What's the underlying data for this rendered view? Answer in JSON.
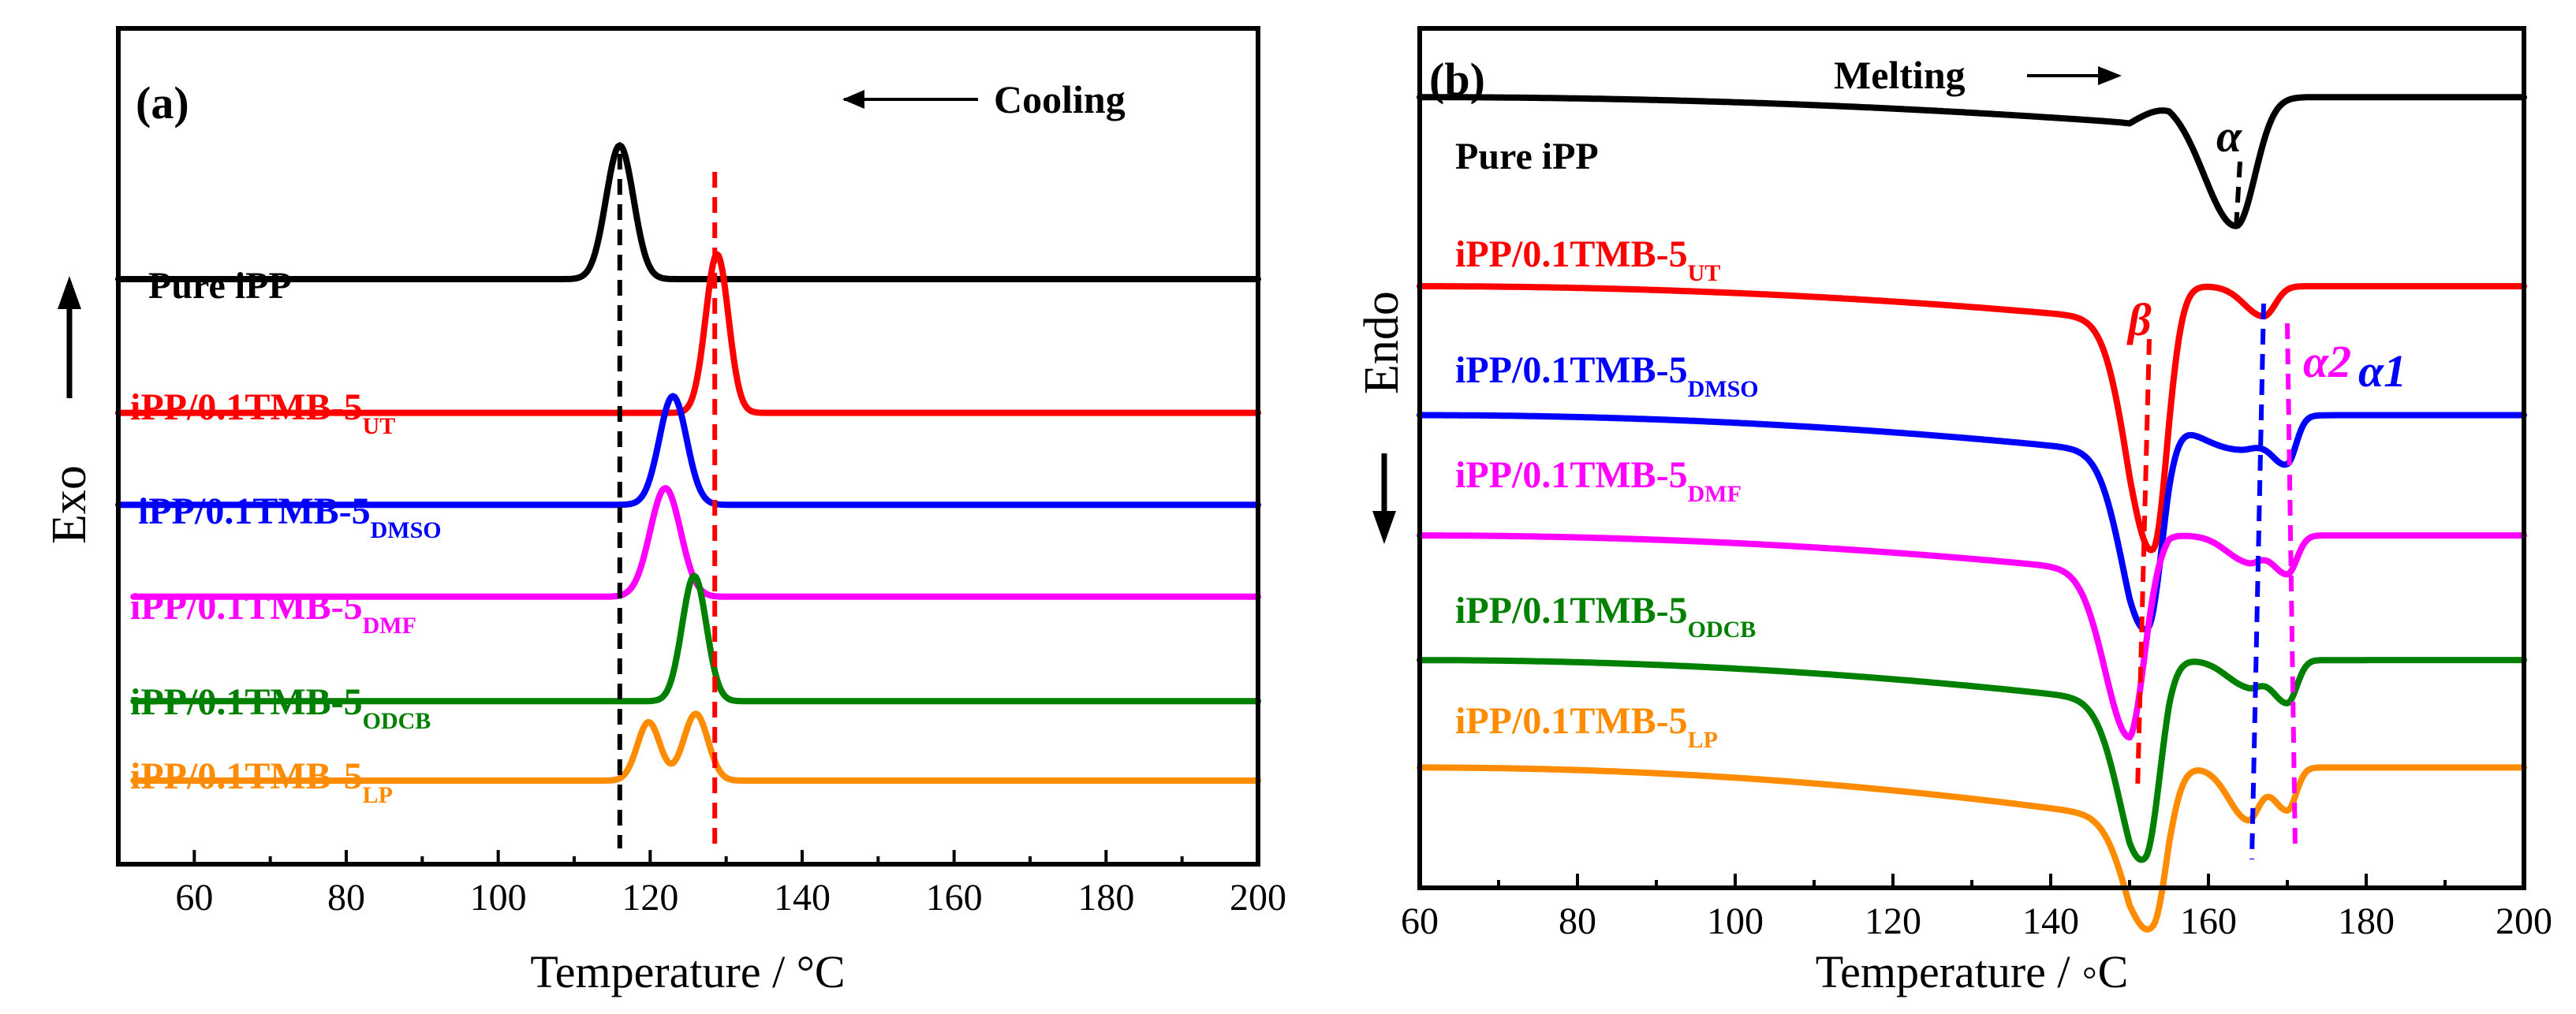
{
  "chart_data": [
    {
      "type": "line",
      "panel_label": "(a)",
      "annotation": "Cooling",
      "annotation_arrow": "left",
      "xlabel": "Temperature / °C",
      "ylabel": "Exo",
      "ylabel_arrow": "up",
      "xlim": [
        50,
        200
      ],
      "xticks": [
        60,
        80,
        100,
        120,
        140,
        160,
        180,
        200
      ],
      "grid": false,
      "series": [
        {
          "name": "Pure iPP",
          "subscript": "",
          "color": "#000000",
          "baseline": 0.7,
          "x_start": 50,
          "peaks": [
            {
              "t": 116.0,
              "w": 1.8,
              "a": 0.16
            }
          ]
        },
        {
          "name": "iPP/0.1TMB-5",
          "subscript": "UT",
          "color": "#ff0000",
          "baseline": 0.54,
          "x_start": 50,
          "peaks": [
            {
              "t": 128.8,
              "w": 1.5,
              "a": 0.19
            }
          ]
        },
        {
          "name": "iPP/0.1TMB-5",
          "subscript": "DMSO",
          "color": "#0000ff",
          "baseline": 0.43,
          "x_start": 50,
          "peaks": [
            {
              "t": 123.0,
              "w": 1.8,
              "a": 0.13
            }
          ]
        },
        {
          "name": "iPP/0.1TMB-5",
          "subscript": "DMF",
          "color": "#ff00ff",
          "baseline": 0.32,
          "x_start": 52,
          "peaks": [
            {
              "t": 122.0,
              "w": 2.0,
              "a": 0.13
            }
          ]
        },
        {
          "name": "iPP/0.1TMB-5",
          "subscript": "ODCB",
          "color": "#008000",
          "baseline": 0.195,
          "x_start": 52,
          "peaks": [
            {
              "t": 125.8,
              "w": 1.6,
              "a": 0.15
            }
          ]
        },
        {
          "name": "iPP/0.1TMB-5",
          "subscript": "LP",
          "color": "#ff8c00",
          "baseline": 0.1,
          "x_start": 52,
          "peaks": [
            {
              "t": 119.8,
              "w": 1.5,
              "a": 0.07
            },
            {
              "t": 126.0,
              "w": 1.6,
              "a": 0.08
            }
          ]
        }
      ],
      "reference_lines": [
        {
          "x": 116,
          "color": "#000000"
        },
        {
          "x": 128.5,
          "color": "#ff0000"
        }
      ]
    },
    {
      "type": "line",
      "panel_label": "(b)",
      "annotation": "Melting",
      "annotation_arrow": "right",
      "xlabel": "Temperature / ◦C",
      "ylabel": "Endo",
      "ylabel_arrow": "down",
      "xlim": [
        60,
        200
      ],
      "xticks": [
        60,
        80,
        100,
        120,
        140,
        160,
        180,
        200
      ],
      "grid": false,
      "series": [
        {
          "name": "Pure iPP",
          "subscript": "",
          "color": "#000000",
          "baseline": 0.92,
          "drift": 0.03,
          "dips": [
            {
              "t": 163.5,
              "w": 3.0,
              "a": 0.15
            }
          ]
        },
        {
          "name": "iPP/0.1TMB-5",
          "subscript": "UT",
          "color": "#ff0000",
          "baseline": 0.7,
          "drift": 0.04,
          "dips": [
            {
              "t": 153.0,
              "w": 2.3,
              "a": 0.29
            },
            {
              "t": 167.0,
              "w": 1.8,
              "a": 0.035
            }
          ]
        },
        {
          "name": "iPP/0.1TMB-5",
          "subscript": "DMSO",
          "color": "#0000ff",
          "baseline": 0.55,
          "drift": 0.045,
          "dips": [
            {
              "t": 152.3,
              "w": 2.3,
              "a": 0.22
            },
            {
              "t": 164.0,
              "w": 4.0,
              "a": 0.04
            },
            {
              "t": 170.0,
              "w": 1.4,
              "a": 0.05
            }
          ]
        },
        {
          "name": "iPP/0.1TMB-5",
          "subscript": "DMF",
          "color": "#ff00ff",
          "baseline": 0.41,
          "drift": 0.045,
          "dips": [
            {
              "t": 150.0,
              "w": 2.3,
              "a": 0.19
            },
            {
              "t": 165.0,
              "w": 2.0,
              "a": 0.03
            },
            {
              "t": 170.0,
              "w": 1.5,
              "a": 0.045
            }
          ]
        },
        {
          "name": "iPP/0.1TMB-5",
          "subscript": "ODCB",
          "color": "#008000",
          "baseline": 0.265,
          "drift": 0.05,
          "dips": [
            {
              "t": 152.0,
              "w": 2.3,
              "a": 0.2
            },
            {
              "t": 165.0,
              "w": 2.0,
              "a": 0.03
            },
            {
              "t": 170.0,
              "w": 1.5,
              "a": 0.05
            }
          ]
        },
        {
          "name": "iPP/0.1TMB-5",
          "subscript": "LP",
          "color": "#ff8c00",
          "baseline": 0.14,
          "drift": 0.06,
          "dips": [
            {
              "t": 153.0,
              "w": 2.3,
              "a": 0.16
            },
            {
              "t": 165.0,
              "w": 1.8,
              "a": 0.06
            },
            {
              "t": 170.0,
              "w": 1.4,
              "a": 0.05
            }
          ]
        }
      ],
      "reference_lines": [
        {
          "x1": 164,
          "x2": 163.5,
          "color": "#000000"
        },
        {
          "x1": 152.5,
          "x2": 151.0,
          "color": "#ff0000"
        },
        {
          "x1": 167,
          "x2": 165.5,
          "color": "#0000ff"
        },
        {
          "x1": 170,
          "x2": 171,
          "color": "#ff00ff"
        }
      ],
      "phase_labels": [
        {
          "text": "α",
          "color": "#000000"
        },
        {
          "text": "β",
          "color": "#ff0000"
        },
        {
          "text": "α1",
          "color": "#0000ff"
        },
        {
          "text": "α2",
          "color": "#ff00ff"
        }
      ]
    }
  ]
}
